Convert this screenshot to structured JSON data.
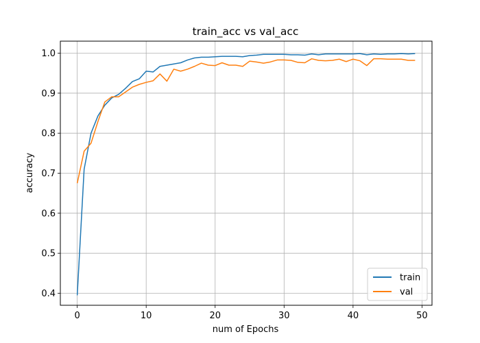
{
  "chart_data": {
    "type": "line",
    "title": "train_acc vs val_acc",
    "xlabel": "num of Epochs",
    "ylabel": "accuracy",
    "xlim": [
      -2.45,
      51.45
    ],
    "ylim": [
      0.37,
      1.03
    ],
    "xticks": [
      0,
      10,
      20,
      30,
      40,
      50
    ],
    "yticks": [
      0.4,
      0.5,
      0.6,
      0.7,
      0.8,
      0.9,
      1.0
    ],
    "grid": true,
    "legend_position": "lower-right",
    "x": [
      0,
      1,
      2,
      3,
      4,
      5,
      6,
      7,
      8,
      9,
      10,
      11,
      12,
      13,
      14,
      15,
      16,
      17,
      18,
      19,
      20,
      21,
      22,
      23,
      24,
      25,
      26,
      27,
      28,
      29,
      30,
      31,
      32,
      33,
      34,
      35,
      36,
      37,
      38,
      39,
      40,
      41,
      42,
      43,
      44,
      45,
      46,
      47,
      48,
      49
    ],
    "series": [
      {
        "name": "train",
        "color": "#1f77b4",
        "values": [
          0.395,
          0.71,
          0.8,
          0.843,
          0.87,
          0.888,
          0.897,
          0.912,
          0.929,
          0.936,
          0.955,
          0.953,
          0.967,
          0.97,
          0.973,
          0.976,
          0.983,
          0.988,
          0.99,
          0.99,
          0.991,
          0.992,
          0.992,
          0.992,
          0.991,
          0.994,
          0.995,
          0.997,
          0.997,
          0.997,
          0.997,
          0.996,
          0.996,
          0.995,
          0.998,
          0.996,
          0.998,
          0.998,
          0.998,
          0.998,
          0.998,
          0.999,
          0.996,
          0.998,
          0.997,
          0.998,
          0.998,
          0.999,
          0.998,
          0.999
        ]
      },
      {
        "name": "val",
        "color": "#ff7f0e",
        "values": [
          0.675,
          0.755,
          0.775,
          0.829,
          0.878,
          0.891,
          0.891,
          0.903,
          0.915,
          0.922,
          0.927,
          0.931,
          0.948,
          0.93,
          0.96,
          0.955,
          0.96,
          0.967,
          0.975,
          0.97,
          0.969,
          0.976,
          0.97,
          0.97,
          0.967,
          0.98,
          0.978,
          0.975,
          0.978,
          0.983,
          0.983,
          0.982,
          0.977,
          0.976,
          0.986,
          0.982,
          0.981,
          0.982,
          0.985,
          0.979,
          0.985,
          0.981,
          0.969,
          0.986,
          0.986,
          0.985,
          0.985,
          0.985,
          0.982,
          0.982
        ]
      }
    ]
  }
}
